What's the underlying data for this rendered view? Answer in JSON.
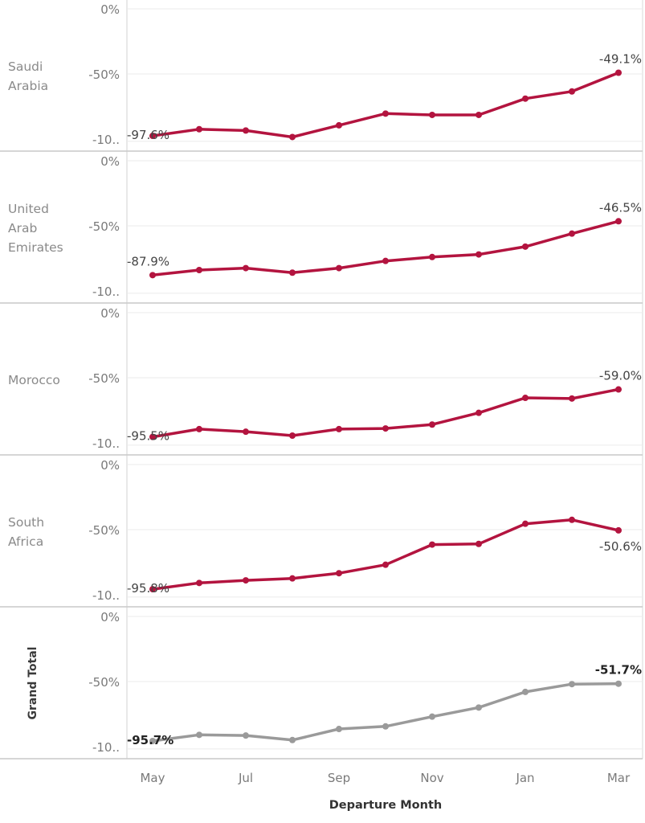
{
  "chart_data": {
    "type": "line",
    "x_title": "Departure Month",
    "x_tick_labels": [
      "May",
      "Jul",
      "Sep",
      "Nov",
      "Jan",
      "Mar"
    ],
    "y_tick_labels": [
      "0%",
      "-50%",
      "-10.."
    ],
    "ylim": [
      -105,
      0
    ],
    "x_count": 11,
    "grid": "horizontal",
    "colors": {
      "series": "#b3143f",
      "total": "#9a9a9a",
      "gridline": "#ebebeb",
      "divider": "#c9c9c9"
    },
    "rows": [
      {
        "name_lines": [
          "Saudi",
          "Arabia"
        ],
        "is_total": false,
        "values": [
          -97.6,
          -92.5,
          -93.5,
          -98.5,
          -89.5,
          -80.5,
          -81.5,
          -81.5,
          -69,
          -63.5,
          -49.1
        ],
        "first_label": "-97.6%",
        "last_label": "-49.1%",
        "last_label_pos": "above"
      },
      {
        "name_lines": [
          "United",
          "Arab",
          "Emirates"
        ],
        "is_total": false,
        "values": [
          -87.9,
          -84,
          -82.5,
          -86,
          -82.5,
          -77,
          -74,
          -72,
          -66,
          -56,
          -46.5
        ],
        "first_label": "-87.9%",
        "last_label": "-46.5%",
        "last_label_pos": "above"
      },
      {
        "name_lines": [
          "Morocco"
        ],
        "is_total": false,
        "values": [
          -95.5,
          -89.5,
          -91.5,
          -94.5,
          -89.5,
          -89,
          -86,
          -77,
          -65.5,
          -66,
          -59.0
        ],
        "first_label": "-95.5%",
        "last_label": "-59.0%",
        "last_label_pos": "above"
      },
      {
        "name_lines": [
          "South",
          "Africa"
        ],
        "is_total": false,
        "values": [
          -95.8,
          -91,
          -89,
          -87.5,
          -83.5,
          -77,
          -61.5,
          -61,
          -45.5,
          -42.5,
          -50.6
        ],
        "first_label": "-95.8%",
        "last_label": "-50.6%",
        "last_label_pos": "below"
      },
      {
        "name_lines": [
          "Grand Total"
        ],
        "is_total": true,
        "values": [
          -95.7,
          -91,
          -91.5,
          -95,
          -86.5,
          -84.5,
          -77,
          -70,
          -58,
          -52,
          -51.7
        ],
        "first_label": "-95.7%",
        "last_label": "-51.7%",
        "last_label_pos": "above"
      }
    ]
  }
}
